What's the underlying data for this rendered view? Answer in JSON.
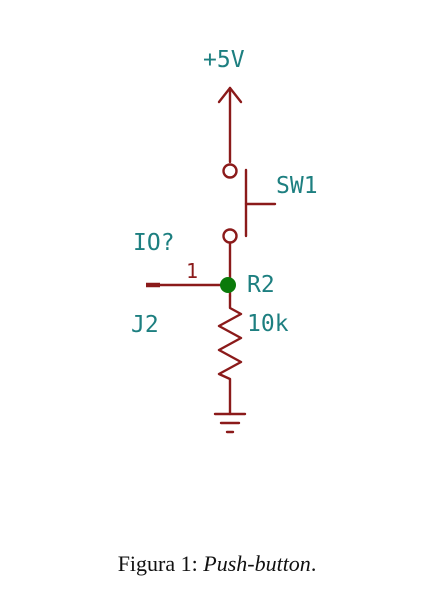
{
  "schematic": {
    "power_label": "+5V",
    "switch_ref": "SW1",
    "connector_value": "IO?",
    "connector_pin": "1",
    "connector_ref": "J2",
    "resistor_ref": "R2",
    "resistor_value": "10k"
  },
  "caption": {
    "prefix": "Figura 1: ",
    "emphasis": "Push-button",
    "suffix": "."
  }
}
